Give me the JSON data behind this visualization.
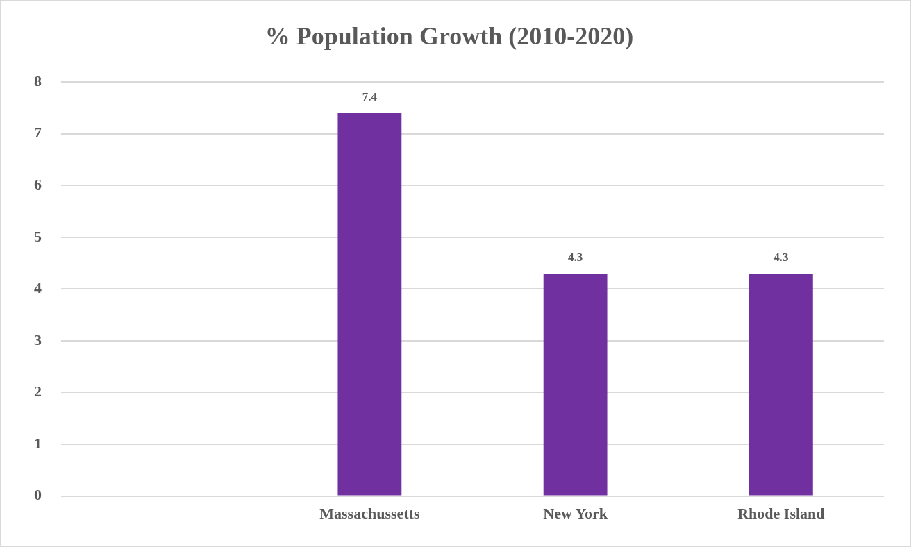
{
  "chart_data": {
    "type": "bar",
    "title": "% Population Growth (2010-2020)",
    "categories": [
      null,
      "Massachussetts",
      "New York",
      "Rhode Island"
    ],
    "values": [
      null,
      7.4,
      4.3,
      4.3
    ],
    "color": "#7030a0",
    "ylim": [
      0,
      8
    ],
    "yticks": [
      0,
      1,
      2,
      3,
      4,
      5,
      6,
      7,
      8
    ],
    "grid": "y",
    "data_labels": true
  }
}
